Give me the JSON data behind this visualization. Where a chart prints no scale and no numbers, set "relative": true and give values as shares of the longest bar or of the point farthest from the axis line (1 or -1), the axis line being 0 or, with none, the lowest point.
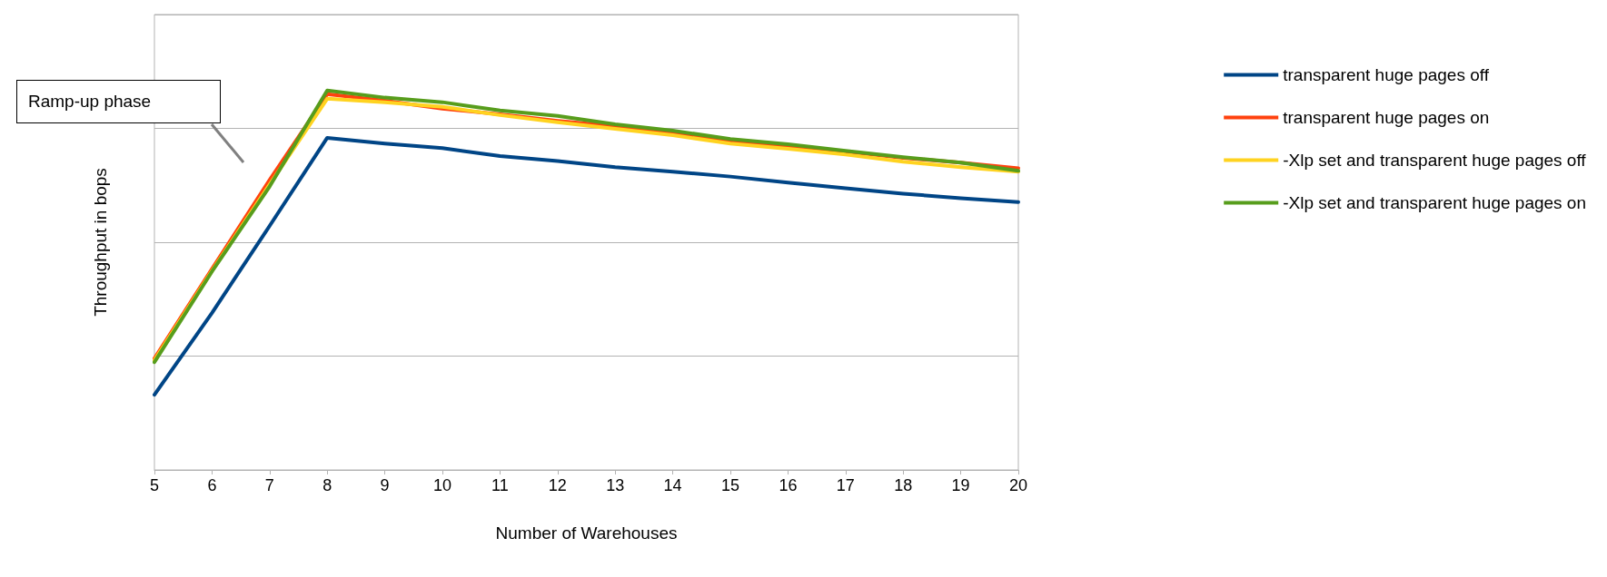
{
  "chart_data": {
    "type": "line",
    "relative": true,
    "xlabel": "Number of Warehouses",
    "ylabel": "Throughput in bops",
    "categories": [
      "5",
      "6",
      "7",
      "8",
      "9",
      "10",
      "11",
      "12",
      "13",
      "14",
      "15",
      "16",
      "17",
      "18",
      "19",
      "20"
    ],
    "series": [
      {
        "name": "transparent huge pages off",
        "color": "#004586",
        "values": [
          0.198,
          0.414,
          0.643,
          0.875,
          0.86,
          0.848,
          0.827,
          0.814,
          0.798,
          0.786,
          0.773,
          0.757,
          0.742,
          0.728,
          0.716,
          0.706
        ]
      },
      {
        "name": "transparent huge pages on",
        "color": "#ff420e",
        "values": [
          0.294,
          0.53,
          0.764,
          0.99,
          0.973,
          0.952,
          0.937,
          0.92,
          0.906,
          0.889,
          0.867,
          0.853,
          0.839,
          0.822,
          0.81,
          0.795
        ]
      },
      {
        "name": "-Xlp set and transparent huge pages off",
        "color": "#ffd320",
        "values": [
          0.289,
          0.525,
          0.752,
          0.978,
          0.969,
          0.957,
          0.935,
          0.916,
          0.899,
          0.882,
          0.86,
          0.846,
          0.831,
          0.812,
          0.798,
          0.786
        ]
      },
      {
        "name": "-Xlp set and transparent huge pages on",
        "color": "#579d1c",
        "values": [
          0.284,
          0.523,
          0.747,
          1,
          0.981,
          0.969,
          0.947,
          0.933,
          0.911,
          0.894,
          0.872,
          0.858,
          0.841,
          0.824,
          0.81,
          0.788
        ]
      }
    ],
    "annotations": [
      "Ramp-up phase"
    ],
    "grid": "y",
    "legend": "right",
    "marker": "none",
    "line_style": "solid"
  }
}
